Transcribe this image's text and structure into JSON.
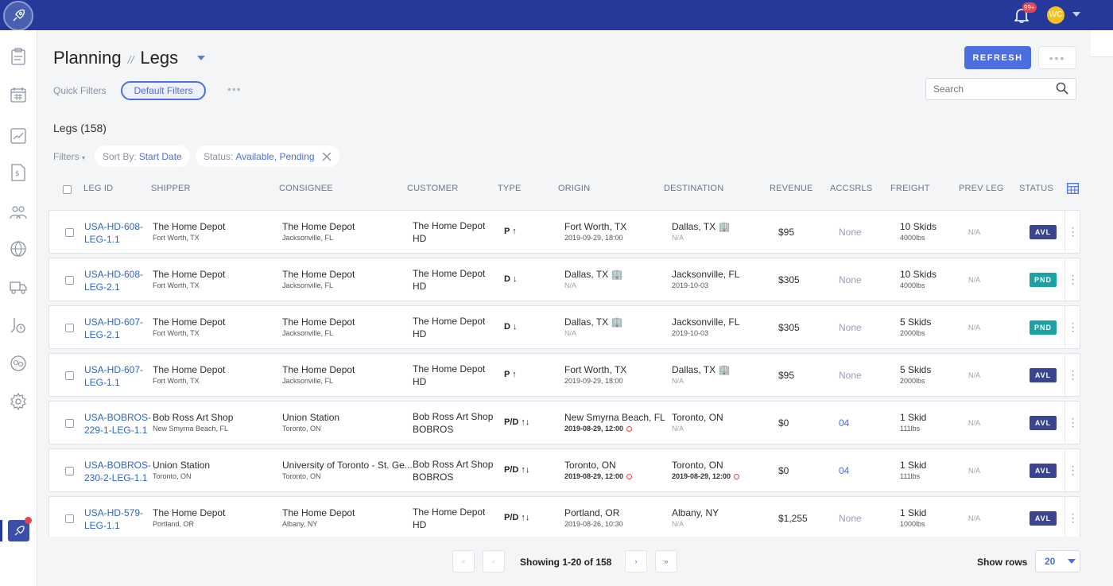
{
  "topbar": {
    "notifications_badge": "99+",
    "avatar_initials": "WC"
  },
  "header": {
    "section": "Planning",
    "separator": "//",
    "page": "Legs",
    "refresh_label": "REFRESH",
    "more_label": "•••"
  },
  "quick_filters": {
    "label": "Quick Filters",
    "default_label": "Default Filters",
    "more_label": "•••"
  },
  "search": {
    "placeholder": "Search"
  },
  "list": {
    "title": "Legs (158)",
    "filters_label": "Filters",
    "sort_label": "Sort By:",
    "sort_value": "Start Date",
    "status_label": "Status:",
    "status_value": "Available, Pending"
  },
  "columns": [
    "LEG ID",
    "SHIPPER",
    "CONSIGNEE",
    "CUSTOMER",
    "TYPE",
    "ORIGIN",
    "DESTINATION",
    "REVENUE",
    "ACCSRLS",
    "FREIGHT",
    "PREV LEG",
    "STATUS"
  ],
  "rows": [
    {
      "id1": "USA-HD-608-",
      "id2": "LEG-1.1",
      "shipper": "The Home Depot",
      "shipper_loc": "Fort Worth, TX",
      "consignee": "The Home Depot",
      "consignee_loc": "Jacksonville, FL",
      "customer": "The Home Depot HD",
      "type": "P ↑",
      "origin": "Fort Worth, TX",
      "origin_sub": "2019-09-29, 18:00",
      "dest": "Dallas, TX 🏢",
      "dest_sub": "N/A",
      "revenue": "$95",
      "acc": "None",
      "freight": "10 Skids",
      "weight": "4000lbs",
      "prev": "N/A",
      "status": "AVL"
    },
    {
      "id1": "USA-HD-608-",
      "id2": "LEG-2.1",
      "shipper": "The Home Depot",
      "shipper_loc": "Fort Worth, TX",
      "consignee": "The Home Depot",
      "consignee_loc": "Jacksonville, FL",
      "customer": "The Home Depot HD",
      "type": "D ↓",
      "origin": "Dallas, TX 🏢",
      "origin_sub": "N/A",
      "dest": "Jacksonville, FL",
      "dest_sub": "2019-10-03",
      "revenue": "$305",
      "acc": "None",
      "freight": "10 Skids",
      "weight": "4000lbs",
      "prev": "N/A",
      "status": "PND"
    },
    {
      "id1": "USA-HD-607-",
      "id2": "LEG-2.1",
      "shipper": "The Home Depot",
      "shipper_loc": "Fort Worth, TX",
      "consignee": "The Home Depot",
      "consignee_loc": "Jacksonville, FL",
      "customer": "The Home Depot HD",
      "type": "D ↓",
      "origin": "Dallas, TX 🏢",
      "origin_sub": "N/A",
      "dest": "Jacksonville, FL",
      "dest_sub": "2019-10-03",
      "revenue": "$305",
      "acc": "None",
      "freight": "5 Skids",
      "weight": "2000lbs",
      "prev": "N/A",
      "status": "PND"
    },
    {
      "id1": "USA-HD-607-",
      "id2": "LEG-1.1",
      "shipper": "The Home Depot",
      "shipper_loc": "Fort Worth, TX",
      "consignee": "The Home Depot",
      "consignee_loc": "Jacksonville, FL",
      "customer": "The Home Depot HD",
      "type": "P ↑",
      "origin": "Fort Worth, TX",
      "origin_sub": "2019-09-29, 18:00",
      "dest": "Dallas, TX 🏢",
      "dest_sub": "N/A",
      "revenue": "$95",
      "acc": "None",
      "freight": "5 Skids",
      "weight": "2000lbs",
      "prev": "N/A",
      "status": "AVL"
    },
    {
      "id1": "USA-BOBROS-",
      "id2": "229-1-LEG-1.1",
      "shipper": "Bob Ross Art Shop",
      "shipper_loc": "New Smyrna Beach, FL",
      "consignee": "Union Station",
      "consignee_loc": "Toronto, ON",
      "customer": "Bob Ross Art Shop BOBROS",
      "type": "P/D ↑↓",
      "origin": "New Smyrna Beach, FL",
      "origin_sub": "2019-08-29, 12:00",
      "dest": "Toronto, ON",
      "dest_sub": "N/A",
      "revenue": "$0",
      "acc": "04",
      "freight": "1 Skid",
      "weight": "111lbs",
      "prev": "N/A",
      "status": "AVL"
    },
    {
      "id1": "USA-BOBROS-",
      "id2": "230-2-LEG-1.1",
      "shipper": "Union Station",
      "shipper_loc": "Toronto, ON",
      "consignee": "University of Toronto - St. Ge...",
      "consignee_loc": "Toronto, ON",
      "customer": "Bob Ross Art Shop BOBROS",
      "type": "P/D ↑↓",
      "origin": "Toronto, ON",
      "origin_sub": "2019-08-29, 12:00",
      "dest": "Toronto, ON",
      "dest_sub": "2019-08-29, 12:00",
      "revenue": "$0",
      "acc": "04",
      "freight": "1 Skid",
      "weight": "111lbs",
      "prev": "N/A",
      "status": "AVL"
    },
    {
      "id1": "USA-HD-579-",
      "id2": "LEG-1.1",
      "shipper": "The Home Depot",
      "shipper_loc": "Portland, OR",
      "consignee": "The Home Depot",
      "consignee_loc": "Albany, NY",
      "customer": "The Home Depot HD",
      "type": "P/D ↑↓",
      "origin": "Portland, OR",
      "origin_sub": "2019-08-26, 10:30",
      "dest": "Albany, NY",
      "dest_sub": "N/A",
      "revenue": "$1,255",
      "acc": "None",
      "freight": "1 Skid",
      "weight": "1000lbs",
      "prev": "N/A",
      "status": "AVL"
    }
  ],
  "pagination": {
    "first": "«",
    "prev": "‹",
    "showing": "Showing 1-20 of 158",
    "next": "›",
    "last": "»",
    "show_rows_label": "Show rows",
    "rows_value": "20"
  },
  "colors": {
    "topbar": "#24399a",
    "accent": "#4c6ee0",
    "status_avl": "#3a4491",
    "status_pnd": "#1ba3a3"
  }
}
